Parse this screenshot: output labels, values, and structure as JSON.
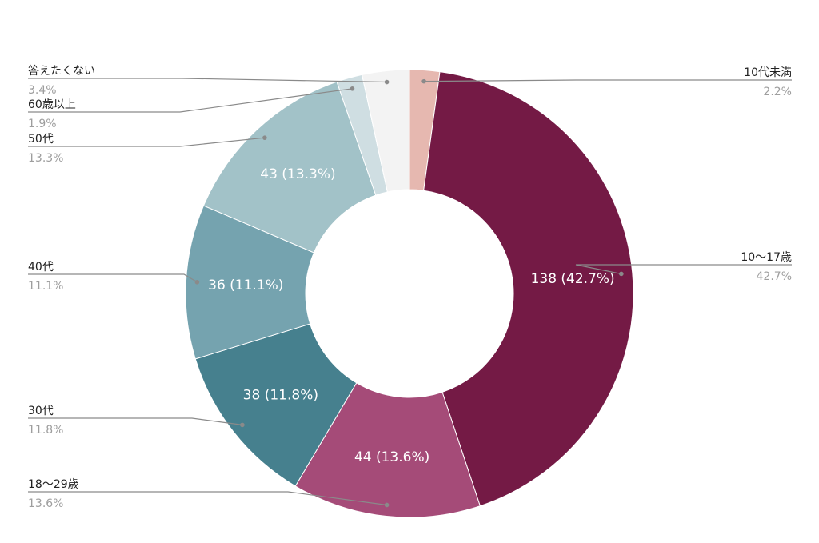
{
  "chart_data": {
    "type": "pie",
    "donut": true,
    "title": "",
    "slices": [
      {
        "name": "10代未満",
        "value": 7,
        "percent_label": "2.2%",
        "color": "#e6b8b0",
        "inner_label": ""
      },
      {
        "name": "10〜17歳",
        "value": 138,
        "percent_label": "42.7%",
        "color": "#741a45",
        "inner_label": "138 (42.7%)"
      },
      {
        "name": "18〜29歳",
        "value": 44,
        "percent_label": "13.6%",
        "color": "#a54b78",
        "inner_label": "44 (13.6%)"
      },
      {
        "name": "30代",
        "value": 38,
        "percent_label": "11.8%",
        "color": "#46808e",
        "inner_label": "38 (11.8%)"
      },
      {
        "name": "40代",
        "value": 36,
        "percent_label": "11.1%",
        "color": "#75a3af",
        "inner_label": "36 (11.1%)"
      },
      {
        "name": "50代",
        "value": 43,
        "percent_label": "13.3%",
        "color": "#a2c2c8",
        "inner_label": "43 (13.3%)"
      },
      {
        "name": "60歳以上",
        "value": 6,
        "percent_label": "1.9%",
        "color": "#cfdee2",
        "inner_label": ""
      },
      {
        "name": "答えたくない",
        "value": 11,
        "percent_label": "3.4%",
        "color": "#f3f3f3",
        "inner_label": ""
      }
    ]
  }
}
